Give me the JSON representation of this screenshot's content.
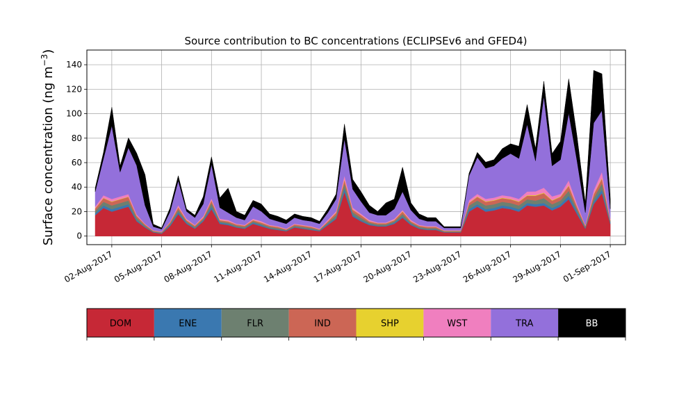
{
  "chart_data": {
    "type": "area",
    "title": "Source contribution to BC concentrations (ECLIPSEv6 and GFED4)",
    "ylabel": "Surface concentration (ng m",
    "ylabel_sup": "−3",
    "ylabel_close": ")",
    "xlabel": "",
    "stacked": true,
    "grid": true,
    "xlim": [
      "2017-07-31T12:00",
      "2017-09-01T22:00"
    ],
    "ylim": [
      -7,
      152
    ],
    "yticks": [
      0,
      20,
      40,
      60,
      80,
      100,
      120,
      140
    ],
    "xticks": [
      "02-Aug-2017",
      "05-Aug-2017",
      "08-Aug-2017",
      "11-Aug-2017",
      "14-Aug-2017",
      "17-Aug-2017",
      "20-Aug-2017",
      "23-Aug-2017",
      "26-Aug-2017",
      "29-Aug-2017",
      "01-Sep-2017"
    ],
    "x": [
      "2017-08-01T00:00",
      "2017-08-01T12:00",
      "2017-08-02T00:00",
      "2017-08-02T12:00",
      "2017-08-03T00:00",
      "2017-08-03T12:00",
      "2017-08-04T00:00",
      "2017-08-04T12:00",
      "2017-08-05T00:00",
      "2017-08-05T12:00",
      "2017-08-06T00:00",
      "2017-08-06T12:00",
      "2017-08-07T00:00",
      "2017-08-07T12:00",
      "2017-08-08T00:00",
      "2017-08-08T12:00",
      "2017-08-09T00:00",
      "2017-08-09T12:00",
      "2017-08-10T00:00",
      "2017-08-10T12:00",
      "2017-08-11T00:00",
      "2017-08-11T12:00",
      "2017-08-12T00:00",
      "2017-08-12T12:00",
      "2017-08-13T00:00",
      "2017-08-13T12:00",
      "2017-08-14T00:00",
      "2017-08-14T12:00",
      "2017-08-15T00:00",
      "2017-08-15T12:00",
      "2017-08-16T00:00",
      "2017-08-16T12:00",
      "2017-08-17T00:00",
      "2017-08-17T12:00",
      "2017-08-18T00:00",
      "2017-08-18T12:00",
      "2017-08-19T00:00",
      "2017-08-19T12:00",
      "2017-08-20T00:00",
      "2017-08-20T12:00",
      "2017-08-21T00:00",
      "2017-08-21T12:00",
      "2017-08-22T00:00",
      "2017-08-22T12:00",
      "2017-08-23T00:00",
      "2017-08-23T12:00",
      "2017-08-24T00:00",
      "2017-08-24T12:00",
      "2017-08-25T00:00",
      "2017-08-25T12:00",
      "2017-08-26T00:00",
      "2017-08-26T12:00",
      "2017-08-27T00:00",
      "2017-08-27T12:00",
      "2017-08-28T00:00",
      "2017-08-28T12:00",
      "2017-08-29T00:00",
      "2017-08-29T12:00",
      "2017-08-30T00:00",
      "2017-08-30T12:00",
      "2017-08-31T00:00",
      "2017-08-31T12:00",
      "2017-09-01T00:00"
    ],
    "series": [
      {
        "name": "DOM",
        "color": "#c62836",
        "values": [
          17,
          23,
          20,
          22,
          24,
          12,
          7,
          3,
          2,
          8,
          18,
          10,
          6,
          12,
          22,
          10,
          9,
          7,
          6,
          10,
          8,
          6,
          5,
          4,
          7,
          6,
          5,
          4,
          9,
          14,
          36,
          16,
          12,
          9,
          8,
          8,
          10,
          15,
          9,
          6,
          5,
          5,
          3,
          3,
          3,
          20,
          24,
          20,
          21,
          23,
          22,
          20,
          25,
          24,
          25,
          21,
          24,
          30,
          18,
          6,
          26,
          35,
          10
        ]
      },
      {
        "name": "ENE",
        "color": "#3a78b0",
        "values": [
          1.5,
          2,
          2,
          2,
          2,
          1,
          0.5,
          0.3,
          0.3,
          1,
          1.5,
          1,
          0.5,
          1,
          2,
          1,
          1,
          0.5,
          0.5,
          1,
          1,
          0.5,
          0.5,
          0.5,
          0.5,
          0.5,
          0.5,
          0.5,
          1,
          1,
          3,
          1.5,
          1,
          1,
          0.5,
          0.5,
          1,
          1,
          1,
          0.5,
          0.5,
          0.5,
          0.3,
          0.3,
          0.3,
          2,
          2,
          2,
          2,
          2,
          2,
          2,
          2,
          2,
          2,
          2,
          2,
          3,
          2,
          0.5,
          2,
          3,
          1
        ]
      },
      {
        "name": "FLR",
        "color": "#6d8070",
        "values": [
          2,
          3,
          3,
          3,
          3,
          2,
          1,
          0.5,
          0.5,
          1,
          2,
          1,
          1,
          1,
          3,
          1,
          1,
          1,
          1,
          1,
          1,
          1,
          1,
          0.5,
          1,
          1,
          1,
          0.5,
          1,
          2,
          4,
          2,
          2,
          1,
          1,
          1,
          1,
          2,
          1,
          1,
          1,
          1,
          0.5,
          0.5,
          0.5,
          3,
          3,
          3,
          3,
          3,
          3,
          3,
          3,
          3,
          4,
          3,
          3,
          4,
          2,
          1,
          3,
          5,
          1
        ]
      },
      {
        "name": "IND",
        "color": "#cc6655",
        "values": [
          2,
          3,
          3,
          3,
          3,
          1.5,
          1,
          0.5,
          0.5,
          1,
          2,
          1,
          1,
          1,
          2,
          1,
          1,
          1,
          1,
          1,
          1,
          1,
          1,
          0.5,
          1,
          1,
          1,
          0.5,
          1,
          2,
          3,
          2,
          2,
          1,
          1,
          1,
          1,
          2,
          1,
          1,
          1,
          1,
          0.5,
          0.5,
          0.5,
          2,
          3,
          3,
          3,
          3,
          3,
          3,
          3,
          4,
          4,
          3,
          3,
          4,
          2,
          1,
          3,
          4,
          1
        ]
      },
      {
        "name": "SHP",
        "color": "#e7d12f",
        "values": [
          0.3,
          0.3,
          0.3,
          0.3,
          0.3,
          0.2,
          0.1,
          0.1,
          0.1,
          0.2,
          0.3,
          0.2,
          0.1,
          0.2,
          0.3,
          0.2,
          0.2,
          0.1,
          0.1,
          0.2,
          0.2,
          0.1,
          0.1,
          0.1,
          0.1,
          0.1,
          0.1,
          0.1,
          0.2,
          0.3,
          0.5,
          0.3,
          0.2,
          0.2,
          0.1,
          0.1,
          0.2,
          0.3,
          0.2,
          0.1,
          0.1,
          0.1,
          0.1,
          0.1,
          0.1,
          0.3,
          0.4,
          0.4,
          0.4,
          0.4,
          0.4,
          0.4,
          0.4,
          0.5,
          0.5,
          0.4,
          0.4,
          0.5,
          0.3,
          0.1,
          0.4,
          0.6,
          0.2
        ]
      },
      {
        "name": "WST",
        "color": "#f07fbf",
        "values": [
          1.5,
          2,
          2,
          2,
          2,
          1,
          0.5,
          0.3,
          0.3,
          0.5,
          1.5,
          1,
          0.5,
          1,
          1.5,
          1,
          1,
          0.5,
          0.5,
          1,
          1,
          0.5,
          0.5,
          0.5,
          0.5,
          0.5,
          0.5,
          0.5,
          1,
          1,
          3,
          1.5,
          1,
          1,
          0.5,
          0.5,
          1,
          1,
          1,
          0.5,
          0.5,
          0.5,
          0.3,
          0.3,
          0.3,
          2,
          2,
          2,
          2,
          2,
          2,
          2,
          3,
          3,
          4,
          3,
          2,
          4,
          2,
          0.5,
          3,
          5,
          1
        ]
      },
      {
        "name": "TRA",
        "color": "#9370db",
        "values": [
          12,
          30,
          60,
          20,
          38,
          40,
          15,
          3,
          2,
          8,
          20,
          6,
          6,
          10,
          28,
          9,
          6,
          5,
          4,
          10,
          8,
          5,
          4,
          4,
          5,
          4,
          4,
          4,
          6,
          10,
          30,
          15,
          10,
          6,
          6,
          6,
          8,
          15,
          8,
          5,
          4,
          4,
          2,
          2,
          2,
          20,
          30,
          25,
          26,
          30,
          35,
          33,
          55,
          25,
          75,
          25,
          28,
          55,
          35,
          10,
          55,
          50,
          8
        ]
      },
      {
        "name": "BB",
        "color": "#000000",
        "values": [
          3,
          5,
          15,
          5,
          8,
          10,
          25,
          2,
          1,
          3,
          4,
          2,
          2,
          6,
          6,
          8,
          20,
          5,
          4,
          5,
          6,
          4,
          4,
          3,
          3,
          3,
          3,
          2,
          3,
          4,
          12,
          8,
          8,
          6,
          3,
          10,
          8,
          20,
          6,
          4,
          3,
          3,
          1,
          1,
          1,
          2,
          4,
          5,
          5,
          8,
          8,
          10,
          16,
          10,
          12,
          10,
          15,
          28,
          20,
          8,
          43,
          30,
          8
        ]
      }
    ],
    "legend": {
      "placement": "colorbar-bottom",
      "entries": [
        "DOM",
        "ENE",
        "FLR",
        "IND",
        "SHP",
        "WST",
        "TRA",
        "BB"
      ],
      "colors": [
        "#c62836",
        "#3a78b0",
        "#6d8070",
        "#cc6655",
        "#e7d12f",
        "#f07fbf",
        "#9370db",
        "#000000"
      ],
      "text_colors": [
        "#000000",
        "#000000",
        "#000000",
        "#000000",
        "#000000",
        "#000000",
        "#000000",
        "#ffffff"
      ]
    }
  }
}
